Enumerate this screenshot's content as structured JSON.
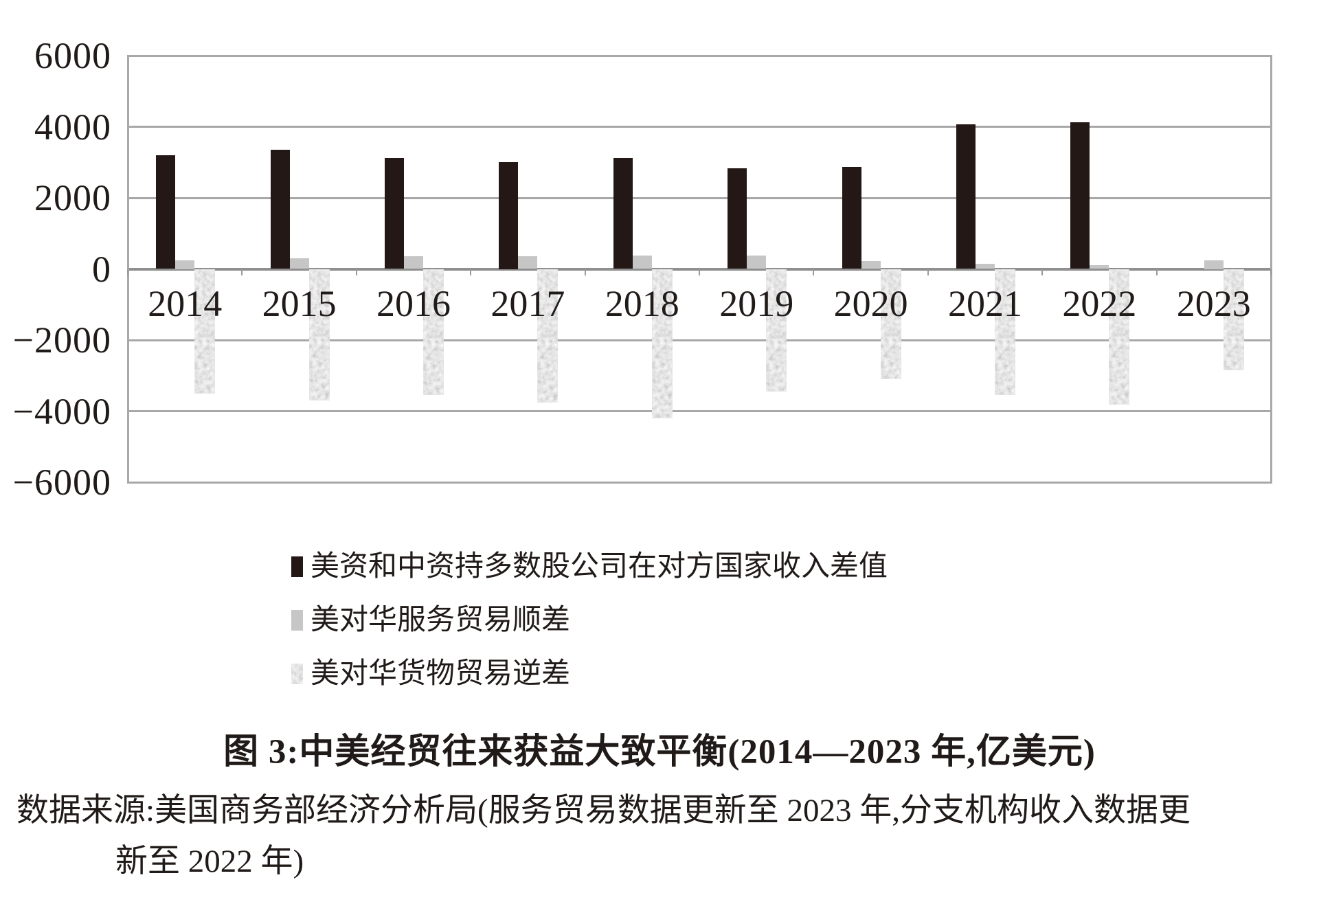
{
  "page": {
    "background": "#ffffff"
  },
  "chart_data": {
    "type": "bar",
    "title": "图 3:中美经贸往来获益大致平衡(2014—2023 年,亿美元)",
    "source": [
      "数据来源:美国商务部经济分析局(服务贸易数据更新至 2023 年,分支机构收入数据更",
      "新至 2022 年)"
    ],
    "unit": "亿美元",
    "categories": [
      "2014",
      "2015",
      "2016",
      "2017",
      "2018",
      "2019",
      "2020",
      "2021",
      "2022",
      "2023"
    ],
    "series": [
      {
        "name": "美资和中资持多数股公司在对方国家收入差值",
        "style": "solid-black",
        "values": [
          3200,
          3350,
          3120,
          3000,
          3120,
          2830,
          2860,
          4060,
          4130,
          null
        ]
      },
      {
        "name": "美对华服务贸易顺差",
        "style": "solid-gray",
        "values": [
          250,
          300,
          350,
          360,
          370,
          380,
          230,
          150,
          100,
          250
        ]
      },
      {
        "name": "美对华货物贸易逆差",
        "style": "speckled",
        "values": [
          -3500,
          -3700,
          -3550,
          -3760,
          -4200,
          -3450,
          -3100,
          -3550,
          -3820,
          -2850
        ]
      }
    ],
    "yticks": [
      6000,
      4000,
      2000,
      0,
      -2000,
      -4000,
      -6000
    ],
    "ylim": [
      -6000,
      6000
    ],
    "grid": true,
    "legend_position": "below-plot"
  },
  "colors": {
    "bar_black": "#231815",
    "bar_gray": "#c6c6c6",
    "gridline": "#a8a8a8",
    "zero_axis": "#8f8f8f",
    "text": "#201a18"
  }
}
